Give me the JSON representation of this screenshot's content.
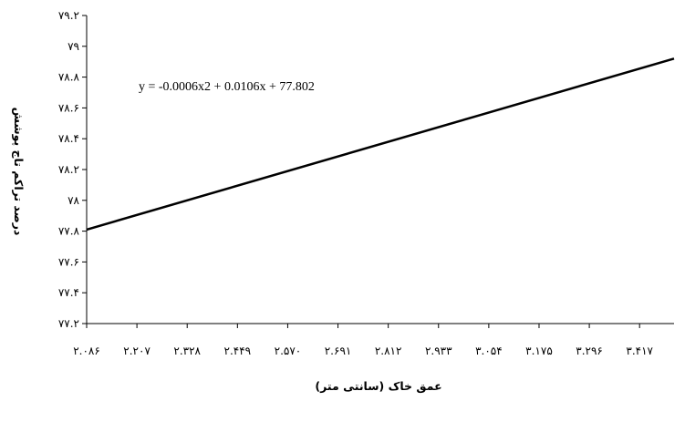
{
  "chart_data": {
    "type": "line",
    "title": "",
    "xlabel": "عمق خاک (سانتی متر)",
    "ylabel": "درصد تراکم تاج پوشش",
    "annotation": "y = -0.0006x2 + 0.0106x + 77.802",
    "x_tick_labels": [
      "۲.۰۸۶",
      "۲.۲۰۷",
      "۲.۳۲۸",
      "۲.۴۴۹",
      "۲.۵۷۰",
      "۲.۶۹۱",
      "۲.۸۱۲",
      "۲.۹۳۳",
      "۳.۰۵۴",
      "۳.۱۷۵",
      "۳.۲۹۶",
      "۳.۴۱۷"
    ],
    "x_ticks": [
      2.086,
      2.207,
      2.328,
      2.449,
      2.57,
      2.691,
      2.812,
      2.933,
      3.054,
      3.175,
      3.296,
      3.417
    ],
    "xlim": [
      2.086,
      3.5
    ],
    "y_tick_labels": [
      "۷۷.۲",
      "۷۷.۴",
      "۷۷.۶",
      "۷۷.۸",
      "۷۸",
      "۷۸.۲",
      "۷۸.۴",
      "۷۸.۶",
      "۷۸.۸",
      "۷۹",
      "۷۹.۲"
    ],
    "y_ticks": [
      77.2,
      77.4,
      77.6,
      77.8,
      78.0,
      78.2,
      78.4,
      78.6,
      78.8,
      79.0,
      79.2
    ],
    "ylim": [
      77.2,
      79.2
    ],
    "series": [
      {
        "x": [
          2.086,
          3.5
        ],
        "values": [
          77.81,
          78.92
        ]
      }
    ],
    "grid": false,
    "legend": "none",
    "line_color": "#000000"
  }
}
